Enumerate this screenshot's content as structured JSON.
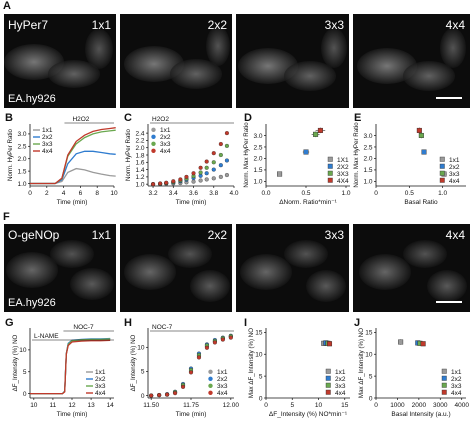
{
  "panel_letters": {
    "A": "A",
    "B": "B",
    "C": "C",
    "D": "D",
    "E": "E",
    "F": "F",
    "G": "G",
    "H": "H",
    "I": "I",
    "J": "J"
  },
  "row1": {
    "tiles": [
      "1x1",
      "2x2",
      "3x3",
      "4x4"
    ],
    "sensor": "HyPer7",
    "cell_line": "EA.hy926"
  },
  "row2": {
    "tiles": [
      "1x1",
      "2x2",
      "3x3",
      "4x4"
    ],
    "sensor": "O-geNOp",
    "cell_line": "EA.hy926"
  },
  "colors": {
    "1x1": "#9a9a9a",
    "2x2": "#2f7ccf",
    "3x3": "#6aa84f",
    "4x4": "#c0392b"
  },
  "chart_data": [
    {
      "id": "B",
      "type": "line",
      "annotation": "H2O2",
      "xlabel": "Time (min)",
      "ylabel": "Norm. HyPer Ratio",
      "xlim": [
        0,
        10
      ],
      "ylim": [
        0.9,
        3.4
      ],
      "xticks": [
        0,
        2,
        4,
        6,
        8,
        10
      ],
      "yticks": [
        1.0,
        1.5,
        2.0,
        2.5,
        3.0
      ],
      "ytick_labels": [
        "1.0",
        "1.5",
        "2.0",
        "2.5",
        "3.0"
      ],
      "legend": [
        "1x1",
        "2x2",
        "3x3",
        "4x4"
      ],
      "series": [
        {
          "name": "1x1",
          "x": [
            0,
            3,
            3.8,
            4.5,
            5.5,
            6.5,
            7.5,
            8.5,
            9.5,
            10.2
          ],
          "y": [
            1.0,
            1.0,
            1.08,
            1.45,
            1.6,
            1.55,
            1.45,
            1.38,
            1.32,
            1.3
          ]
        },
        {
          "name": "2x2",
          "x": [
            0,
            3,
            3.8,
            4.5,
            5.5,
            6.5,
            7.5,
            8.5,
            9.5,
            10.2
          ],
          "y": [
            1.0,
            1.0,
            1.15,
            1.8,
            2.2,
            2.3,
            2.3,
            2.25,
            2.2,
            2.18
          ]
        },
        {
          "name": "3x3",
          "x": [
            0,
            3,
            3.8,
            4.5,
            5.5,
            6.5,
            7.5,
            8.5,
            9.5,
            10.2
          ],
          "y": [
            1.0,
            1.0,
            1.2,
            2.1,
            2.6,
            2.85,
            3.0,
            3.08,
            3.12,
            3.15
          ]
        },
        {
          "name": "4x4",
          "x": [
            0,
            3,
            3.8,
            4.5,
            5.5,
            6.5,
            7.5,
            8.5,
            9.5,
            10.2
          ],
          "y": [
            1.0,
            1.0,
            1.22,
            2.15,
            2.7,
            2.95,
            3.1,
            3.18,
            3.22,
            3.25
          ]
        }
      ]
    },
    {
      "id": "C",
      "type": "scatter",
      "annotation": "H2O2",
      "xlabel": "Time (min)",
      "ylabel": "Norm. HyPer Ratio",
      "xlim": [
        3.15,
        4.0
      ],
      "ylim": [
        0.95,
        2.65
      ],
      "xticks": [
        3.2,
        3.4,
        3.6,
        3.8,
        4.0
      ],
      "xtick_labels": [
        "3.2",
        "3.4",
        "3.6",
        "3.8",
        "4.0"
      ],
      "yticks": [
        1.0,
        1.2,
        1.4,
        1.6,
        1.8,
        2.0,
        2.2,
        2.4
      ],
      "ytick_labels": [
        "1.0",
        "1.2",
        "1.4",
        "1.6",
        "1.8",
        "2.0",
        "2.2",
        "2.4"
      ],
      "legend": [
        "1x1",
        "2x2",
        "3x3",
        "4x4"
      ],
      "series": [
        {
          "name": "1x1",
          "x": [
            3.2,
            3.27,
            3.33,
            3.4,
            3.47,
            3.53,
            3.6,
            3.67,
            3.73,
            3.8,
            3.87,
            3.93
          ],
          "y": [
            1.0,
            1.0,
            1.01,
            1.02,
            1.03,
            1.05,
            1.07,
            1.1,
            1.13,
            1.16,
            1.2,
            1.25
          ]
        },
        {
          "name": "2x2",
          "x": [
            3.2,
            3.27,
            3.33,
            3.4,
            3.47,
            3.53,
            3.6,
            3.67,
            3.73,
            3.8,
            3.87,
            3.93
          ],
          "y": [
            1.0,
            1.01,
            1.03,
            1.05,
            1.08,
            1.12,
            1.17,
            1.23,
            1.3,
            1.4,
            1.52,
            1.65
          ]
        },
        {
          "name": "3x3",
          "x": [
            3.2,
            3.27,
            3.33,
            3.4,
            3.47,
            3.53,
            3.6,
            3.67,
            3.73,
            3.8,
            3.87,
            3.93
          ],
          "y": [
            1.0,
            1.01,
            1.03,
            1.06,
            1.1,
            1.15,
            1.22,
            1.32,
            1.45,
            1.6,
            1.8,
            2.05
          ]
        },
        {
          "name": "4x4",
          "x": [
            3.2,
            3.27,
            3.33,
            3.4,
            3.47,
            3.53,
            3.6,
            3.67,
            3.73,
            3.8,
            3.87,
            3.93
          ],
          "y": [
            1.0,
            1.02,
            1.04,
            1.08,
            1.13,
            1.2,
            1.3,
            1.45,
            1.62,
            1.85,
            2.1,
            2.4
          ]
        }
      ]
    },
    {
      "id": "D",
      "type": "scatter",
      "xlabel": "ΔNorm. Ratio*min⁻¹",
      "ylabel": "Norm. Max HyPer Ratio",
      "xlim": [
        0,
        1.05
      ],
      "ylim": [
        0.8,
        3.5
      ],
      "xticks": [
        0.0,
        0.5,
        1.0
      ],
      "xtick_labels": [
        "0.0",
        "0.5",
        "1.0"
      ],
      "yticks": [
        1.0,
        1.5,
        2.0,
        2.5,
        3.0
      ],
      "ytick_labels": [
        "1.0",
        "1.5",
        "2.0",
        "2.5",
        "3.0"
      ],
      "legend": [
        "1X1",
        "2X2",
        "3X3",
        "4X4"
      ],
      "points": [
        {
          "name": "1x1",
          "x": 0.17,
          "y": 1.32,
          "xerr": 0.02,
          "yerr": 0.04
        },
        {
          "name": "2x2",
          "x": 0.5,
          "y": 2.28,
          "xerr": 0.04,
          "yerr": 0.1
        },
        {
          "name": "3x3",
          "x": 0.62,
          "y": 3.05,
          "xerr": 0.05,
          "yerr": 0.12
        },
        {
          "name": "4x4",
          "x": 0.68,
          "y": 3.22,
          "xerr": 0.06,
          "yerr": 0.12
        }
      ]
    },
    {
      "id": "E",
      "type": "scatter",
      "xlabel": "Basal Ratio",
      "ylabel": "Norm. Max HyPer Ratio",
      "xlim": [
        0,
        1.35
      ],
      "ylim": [
        0.8,
        3.5
      ],
      "xticks": [
        0,
        0.5,
        1.0
      ],
      "xtick_labels": [
        "0",
        "0.5",
        "1.0"
      ],
      "yticks": [
        1.0,
        1.5,
        2.0,
        2.5,
        3.0
      ],
      "ytick_labels": [
        "1.0",
        "1.5",
        "2.0",
        "2.5",
        "3.0"
      ],
      "legend": [
        "1x1",
        "2x2",
        "3x3",
        "4x4"
      ],
      "points": [
        {
          "name": "1x1",
          "x": 1.02,
          "y": 1.32,
          "xerr": 0.04,
          "yerr": 0.04
        },
        {
          "name": "2x2",
          "x": 0.72,
          "y": 2.28,
          "xerr": 0.03,
          "yerr": 0.1
        },
        {
          "name": "3x3",
          "x": 0.68,
          "y": 3.0,
          "xerr": 0.03,
          "yerr": 0.12
        },
        {
          "name": "4x4",
          "x": 0.65,
          "y": 3.22,
          "xerr": 0.03,
          "yerr": 0.12
        }
      ]
    },
    {
      "id": "G",
      "type": "line",
      "annotations": [
        "NOC-7",
        "L-NAME"
      ],
      "xlabel": "Time (min)",
      "ylabel": "ΔF_Intensity (%) NO",
      "xlim": [
        9.8,
        14.2
      ],
      "ylim": [
        -1,
        15
      ],
      "xticks": [
        10,
        11,
        12,
        13,
        14
      ],
      "xtick_labels": [
        "10",
        "11",
        "12",
        "13",
        "14"
      ],
      "yticks": [
        0,
        5,
        10
      ],
      "ytick_labels": [
        "0",
        "5",
        "10"
      ],
      "legend": [
        "1x1",
        "2x2",
        "3x3",
        "4x4"
      ],
      "series": [
        {
          "name": "1x1",
          "x": [
            9.8,
            11.5,
            11.62,
            11.7,
            11.8,
            12.0,
            12.5,
            13.0,
            13.5,
            14.0
          ],
          "y": [
            0,
            0,
            0.5,
            9,
            11.2,
            12,
            12.2,
            12.3,
            12.3,
            12.4
          ]
        },
        {
          "name": "2x2",
          "x": [
            9.8,
            11.5,
            11.62,
            11.7,
            11.8,
            12.0,
            12.5,
            13.0,
            13.5,
            14.0
          ],
          "y": [
            0,
            0,
            0.6,
            9.2,
            11.5,
            12.2,
            12.4,
            12.5,
            12.5,
            12.6
          ]
        },
        {
          "name": "3x3",
          "x": [
            9.8,
            11.5,
            11.62,
            11.7,
            11.8,
            12.0,
            12.5,
            13.0,
            13.5,
            14.0
          ],
          "y": [
            0,
            0,
            0.5,
            9.1,
            11.3,
            12.1,
            12.3,
            12.4,
            12.4,
            12.5
          ]
        },
        {
          "name": "4x4",
          "x": [
            9.8,
            11.5,
            11.62,
            11.7,
            11.8,
            12.0,
            12.5,
            13.0,
            13.5,
            14.0
          ],
          "y": [
            0,
            0,
            0.4,
            9.0,
            11.0,
            11.8,
            12.0,
            12.1,
            12.1,
            12.2
          ]
        }
      ]
    },
    {
      "id": "H",
      "type": "scatter",
      "annotation": "NOC-7",
      "xlabel": "Time (min)",
      "ylabel": "ΔF_Intensity (%) NO",
      "xlim": [
        11.48,
        12.02
      ],
      "ylim": [
        -0.5,
        14
      ],
      "xticks": [
        11.5,
        11.75,
        12.0
      ],
      "xtick_labels": [
        "11.50",
        "11.75",
        "12.00"
      ],
      "yticks": [
        0,
        5,
        10
      ],
      "ytick_labels": [
        "0",
        "5",
        "10"
      ],
      "legend": [
        "1x1",
        "2x2",
        "3x3",
        "4x4"
      ],
      "series": [
        {
          "name": "1x1",
          "x": [
            11.5,
            11.55,
            11.6,
            11.65,
            11.7,
            11.75,
            11.8,
            11.85,
            11.9,
            11.95,
            12.0
          ],
          "y": [
            0,
            0.1,
            0.2,
            0.6,
            2.0,
            5.0,
            8.2,
            10.2,
            11.2,
            11.8,
            12.2
          ]
        },
        {
          "name": "2x2",
          "x": [
            11.5,
            11.55,
            11.6,
            11.65,
            11.7,
            11.75,
            11.8,
            11.85,
            11.9,
            11.95,
            12.0
          ],
          "y": [
            0,
            0.1,
            0.3,
            0.8,
            2.4,
            5.6,
            8.7,
            10.6,
            11.5,
            12.0,
            12.4
          ]
        },
        {
          "name": "3x3",
          "x": [
            11.5,
            11.55,
            11.6,
            11.65,
            11.7,
            11.75,
            11.8,
            11.85,
            11.9,
            11.95,
            12.0
          ],
          "y": [
            0,
            0.1,
            0.2,
            0.7,
            2.2,
            5.3,
            8.4,
            10.4,
            11.3,
            11.9,
            12.3
          ]
        },
        {
          "name": "4x4",
          "x": [
            11.5,
            11.55,
            11.6,
            11.65,
            11.7,
            11.75,
            11.8,
            11.85,
            11.9,
            11.95,
            12.0
          ],
          "y": [
            0,
            0.1,
            0.2,
            0.5,
            1.8,
            4.8,
            7.9,
            9.9,
            11.0,
            11.6,
            12.0
          ]
        }
      ]
    },
    {
      "id": "I",
      "type": "scatter",
      "xlabel": "ΔF_Intensity (%) NO*min⁻¹",
      "ylabel": "Max ΔF_Intensity (%) NO",
      "xlim": [
        0,
        16
      ],
      "ylim": [
        0,
        16
      ],
      "xticks": [
        0,
        5,
        10,
        15
      ],
      "xtick_labels": [
        "0",
        "5",
        "10",
        "15"
      ],
      "yticks": [
        0,
        5,
        10,
        15
      ],
      "ytick_labels": [
        "0",
        "5",
        "10",
        "15"
      ],
      "legend": [
        "1x1",
        "2x2",
        "3x3",
        "4x4"
      ],
      "points": [
        {
          "name": "1x1",
          "x": 11.0,
          "y": 12.5,
          "xerr": 0.3,
          "yerr": 0.5
        },
        {
          "name": "2x2",
          "x": 11.4,
          "y": 12.6,
          "xerr": 0.3,
          "yerr": 0.5
        },
        {
          "name": "3x3",
          "x": 11.8,
          "y": 12.5,
          "xerr": 0.3,
          "yerr": 0.5
        },
        {
          "name": "4x4",
          "x": 12.1,
          "y": 12.4,
          "xerr": 0.3,
          "yerr": 0.5
        }
      ]
    },
    {
      "id": "J",
      "type": "scatter",
      "xlabel": "Basal Intensity (a.u.)",
      "ylabel": "Max ΔF_Intensity (%) NO",
      "xlim": [
        0,
        4200
      ],
      "ylim": [
        0,
        16
      ],
      "xticks": [
        0,
        1000,
        2000,
        3000,
        4000
      ],
      "xtick_labels": [
        "0",
        "1000",
        "2000",
        "3000",
        "4000"
      ],
      "yticks": [
        0,
        5,
        10,
        15
      ],
      "ytick_labels": [
        "0",
        "5",
        "10",
        "15"
      ],
      "legend": [
        "1x1",
        "2x2",
        "3x3",
        "4x4"
      ],
      "points": [
        {
          "name": "1x1",
          "x": 1150,
          "y": 12.8,
          "xerr": 80,
          "yerr": 0.6
        },
        {
          "name": "2x2",
          "x": 1950,
          "y": 12.6,
          "xerr": 100,
          "yerr": 0.5
        },
        {
          "name": "3x3",
          "x": 2050,
          "y": 12.5,
          "xerr": 100,
          "yerr": 0.5
        },
        {
          "name": "4x4",
          "x": 2200,
          "y": 12.4,
          "xerr": 100,
          "yerr": 0.5
        }
      ]
    }
  ]
}
